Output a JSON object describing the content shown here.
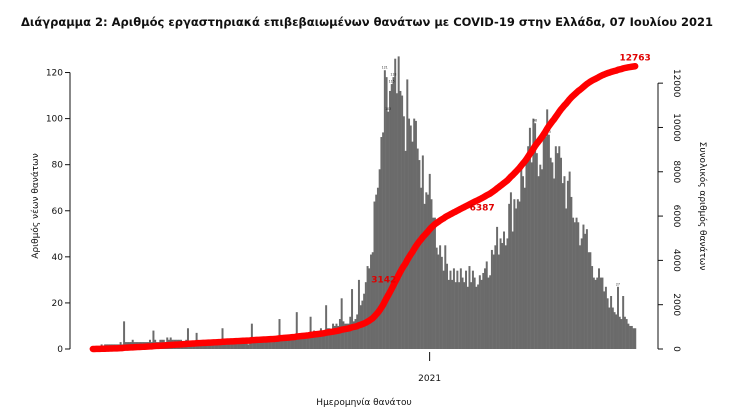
{
  "chart_data": {
    "type": "bar",
    "title": "Διάγραμμα 2: Αριθμός εργαστηριακά επιβεβαιωμένων θανάτων με COVID-19 στην Ελλάδα, 07 Ιουλίου 2021",
    "xlabel": "Ημερομηνία θανάτου",
    "ylabel": "Αριθμός νέων θανάτων",
    "ylabel_right": "Συνολικός αριθμός θανάτων",
    "ylim": [
      0,
      125
    ],
    "ylim_right": [
      0,
      13000
    ],
    "yticks": [
      0,
      20,
      40,
      60,
      80,
      100,
      120
    ],
    "yticks_right": [
      0,
      2000,
      4000,
      6000,
      8000,
      10000,
      12000
    ],
    "x_tick_label": "2021",
    "x_tick_index": 195,
    "anchors": [
      [
        0,
        1
      ],
      [
        10,
        2
      ],
      [
        20,
        3
      ],
      [
        30,
        3
      ],
      [
        40,
        4
      ],
      [
        50,
        4
      ],
      [
        60,
        3
      ],
      [
        70,
        3
      ],
      [
        80,
        3
      ],
      [
        90,
        3
      ],
      [
        100,
        3
      ],
      [
        110,
        5
      ],
      [
        120,
        6
      ],
      [
        130,
        8
      ],
      [
        140,
        10
      ],
      [
        150,
        13
      ],
      [
        155,
        18
      ],
      [
        160,
        35
      ],
      [
        165,
        70
      ],
      [
        168,
        95
      ],
      [
        172,
        112
      ],
      [
        177,
        108
      ],
      [
        182,
        100
      ],
      [
        187,
        90
      ],
      [
        191,
        78
      ],
      [
        195,
        65
      ],
      [
        200,
        46
      ],
      [
        205,
        37
      ],
      [
        210,
        32
      ],
      [
        215,
        30
      ],
      [
        220,
        30
      ],
      [
        225,
        33
      ],
      [
        230,
        38
      ],
      [
        235,
        48
      ],
      [
        240,
        56
      ],
      [
        245,
        66
      ],
      [
        250,
        78
      ],
      [
        255,
        86
      ],
      [
        260,
        90
      ],
      [
        265,
        88
      ],
      [
        270,
        80
      ],
      [
        275,
        68
      ],
      [
        280,
        56
      ],
      [
        285,
        46
      ],
      [
        290,
        36
      ],
      [
        295,
        27
      ],
      [
        300,
        20
      ],
      [
        305,
        15
      ],
      [
        310,
        11
      ],
      [
        314,
        9
      ]
    ],
    "spikes": [
      [
        18,
        12
      ],
      [
        35,
        8
      ],
      [
        55,
        9
      ],
      [
        60,
        7
      ],
      [
        75,
        9
      ],
      [
        92,
        11
      ],
      [
        108,
        13
      ],
      [
        118,
        16
      ],
      [
        126,
        14
      ],
      [
        135,
        19
      ],
      [
        144,
        22
      ],
      [
        150,
        26
      ],
      [
        154,
        30
      ],
      [
        166,
        78
      ],
      [
        169,
        121
      ],
      [
        171,
        103
      ],
      [
        173,
        115
      ],
      [
        174,
        118
      ],
      [
        179,
        110
      ],
      [
        184,
        97
      ],
      [
        190,
        70
      ],
      [
        197,
        57
      ],
      [
        218,
        36
      ],
      [
        228,
        38
      ],
      [
        241,
        63
      ],
      [
        252,
        88
      ],
      [
        256,
        98
      ],
      [
        261,
        94
      ],
      [
        264,
        93
      ],
      [
        268,
        88
      ],
      [
        272,
        72
      ],
      [
        286,
        52
      ],
      [
        304,
        27
      ],
      [
        307,
        23
      ],
      [
        309,
        13
      ],
      [
        311,
        10
      ],
      [
        313,
        9
      ]
    ],
    "labelled_bars": [
      [
        169,
        121
      ],
      [
        171,
        103
      ],
      [
        173,
        115
      ],
      [
        174,
        118
      ],
      [
        256,
        98
      ],
      [
        264,
        93
      ],
      [
        304,
        27
      ]
    ],
    "cumulative_annotations": [
      {
        "index": 178,
        "value": 3142,
        "label": "3142"
      },
      {
        "index": 235,
        "value": 6387,
        "label": "6387"
      },
      {
        "index": 314,
        "value": 12763,
        "label": "12763"
      }
    ]
  }
}
